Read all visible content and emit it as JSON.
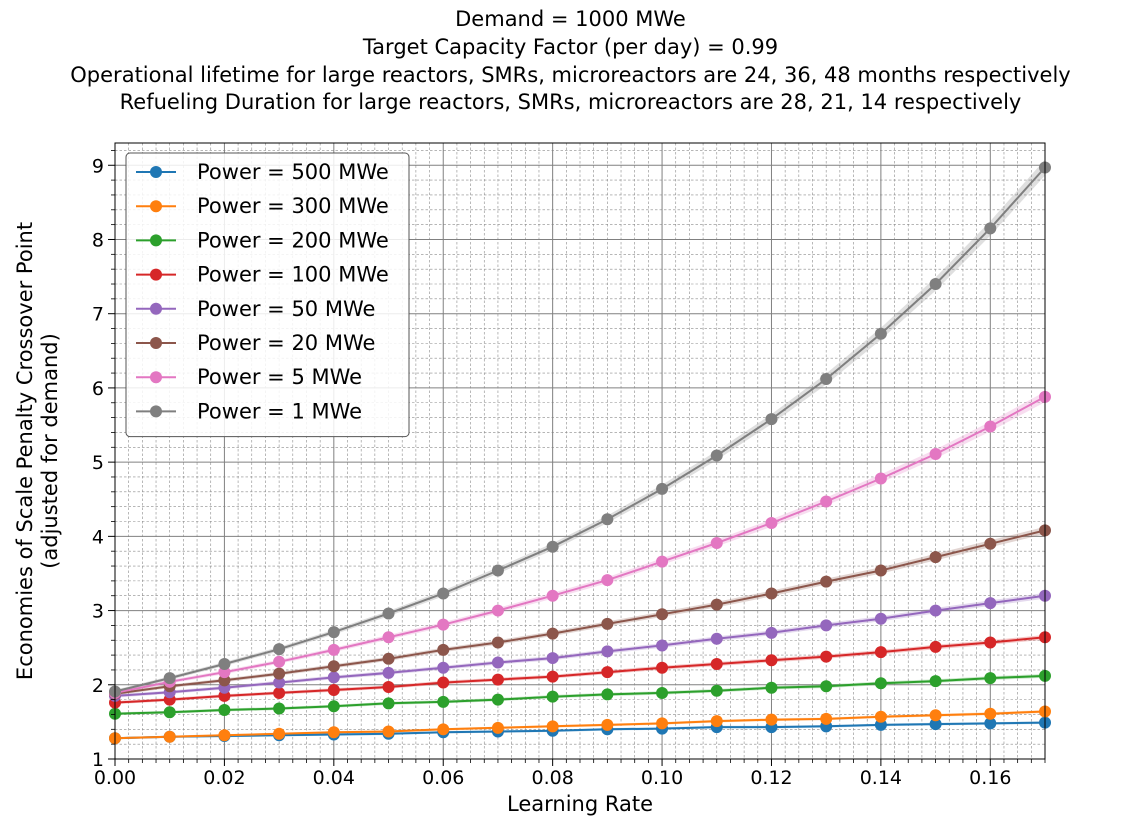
{
  "title_lines": [
    "Demand = 1000 MWe",
    "Target Capacity Factor (per day) = 0.99",
    "Operational lifetime for large reactors, SMRs, microreactors are 24, 36, 48 months respectively",
    "Refueling Duration for large reactors, SMRs, microreactors are 28, 21, 14 respectively"
  ],
  "chart_data": {
    "type": "line",
    "title": "Demand = 1000 MWe / Target Capacity Factor (per day) = 0.99 / Operational lifetime for large reactors, SMRs, microreactors are 24, 36, 48 months respectively / Refueling Duration for large reactors, SMRs, microreactors are 28, 21, 14 respectively",
    "xlabel": "Learning Rate",
    "ylabel": "Economies of Scale Penalty Crossover Point (adjusted for demand)",
    "ylabel_lines": [
      "Economies of Scale Penalty Crossover Point",
      "(adjusted for demand)"
    ],
    "xlim": [
      0,
      0.17
    ],
    "ylim": [
      1,
      9.3
    ],
    "x_ticks": [
      "0.00",
      "0.02",
      "0.04",
      "0.06",
      "0.08",
      "0.10",
      "0.12",
      "0.14",
      "0.16"
    ],
    "y_ticks": [
      "1",
      "2",
      "3",
      "4",
      "5",
      "6",
      "7",
      "8",
      "9"
    ],
    "grid": true,
    "legend_position": "top-left",
    "x": [
      0,
      0.01,
      0.02,
      0.03,
      0.04,
      0.05,
      0.06,
      0.07,
      0.08,
      0.09,
      0.1,
      0.11,
      0.12,
      0.13,
      0.14,
      0.15,
      0.16,
      0.17
    ],
    "series": [
      {
        "name": "Power = 500 MWe",
        "color": "#1f77b4",
        "values": [
          1.28,
          1.3,
          1.31,
          1.32,
          1.33,
          1.34,
          1.36,
          1.37,
          1.38,
          1.4,
          1.41,
          1.43,
          1.43,
          1.44,
          1.46,
          1.47,
          1.48,
          1.49
        ]
      },
      {
        "name": "Power = 300 MWe",
        "color": "#ff7f0e",
        "values": [
          1.28,
          1.3,
          1.32,
          1.34,
          1.36,
          1.37,
          1.4,
          1.42,
          1.44,
          1.46,
          1.48,
          1.51,
          1.53,
          1.54,
          1.57,
          1.59,
          1.61,
          1.64
        ]
      },
      {
        "name": "Power = 200 MWe",
        "color": "#2ca02c",
        "values": [
          1.61,
          1.63,
          1.66,
          1.68,
          1.71,
          1.75,
          1.77,
          1.8,
          1.84,
          1.87,
          1.89,
          1.92,
          1.96,
          1.98,
          2.02,
          2.05,
          2.09,
          2.12
        ]
      },
      {
        "name": "Power = 100 MWe",
        "color": "#d62728",
        "values": [
          1.76,
          1.8,
          1.85,
          1.89,
          1.93,
          1.97,
          2.03,
          2.07,
          2.11,
          2.17,
          2.23,
          2.28,
          2.33,
          2.38,
          2.44,
          2.51,
          2.57,
          2.64
        ]
      },
      {
        "name": "Power = 50 MWe",
        "color": "#9467bd",
        "values": [
          1.85,
          1.9,
          1.96,
          2.03,
          2.1,
          2.16,
          2.23,
          2.3,
          2.36,
          2.45,
          2.53,
          2.62,
          2.7,
          2.8,
          2.89,
          3.0,
          3.1,
          3.2
        ]
      },
      {
        "name": "Power = 20 MWe",
        "color": "#8c564b",
        "values": [
          1.88,
          1.98,
          2.06,
          2.15,
          2.25,
          2.35,
          2.47,
          2.57,
          2.69,
          2.82,
          2.95,
          3.08,
          3.23,
          3.39,
          3.54,
          3.72,
          3.9,
          4.08
        ]
      },
      {
        "name": "Power = 5 MWe",
        "color": "#e377c2",
        "values": [
          1.89,
          2.04,
          2.17,
          2.31,
          2.47,
          2.64,
          2.81,
          3.0,
          3.2,
          3.41,
          3.66,
          3.91,
          4.18,
          4.47,
          4.78,
          5.11,
          5.48,
          5.88
        ]
      },
      {
        "name": "Power = 1 MWe",
        "color": "#7f7f7f",
        "values": [
          1.91,
          2.09,
          2.28,
          2.48,
          2.71,
          2.96,
          3.23,
          3.54,
          3.86,
          4.23,
          4.64,
          5.09,
          5.58,
          6.12,
          6.73,
          7.4,
          8.15,
          8.97
        ]
      }
    ]
  }
}
